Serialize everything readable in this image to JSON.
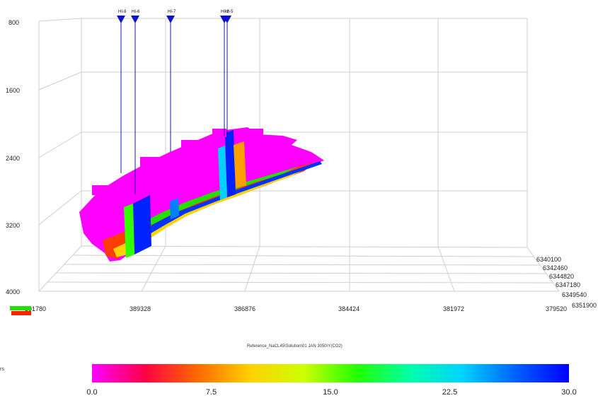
{
  "chart_data": {
    "type": "3d-grid-property",
    "caption": "Reference_NaCL45\\Solution\\01 JAN 3050\\Y(CO2)",
    "depth_axis": {
      "ticks": [
        "800",
        "1600",
        "2400",
        "3200",
        "4000"
      ],
      "range": [
        800,
        4000
      ]
    },
    "x_axis": {
      "ticks": [
        "391780",
        "389328",
        "386876",
        "384424",
        "381972",
        "379520"
      ],
      "range": [
        391780,
        379520
      ]
    },
    "y_axis": {
      "ticks": [
        "6340100",
        "6342460",
        "6344820",
        "6347180",
        "6349540",
        "6351900"
      ],
      "range": [
        6340100,
        6351900
      ]
    },
    "wells": [
      {
        "name": "HI-8"
      },
      {
        "name": "HI-6"
      },
      {
        "name": "HI-7"
      },
      {
        "name": "HI-2"
      },
      {
        "name": "HI-5"
      }
    ],
    "colorbar": {
      "ticks": [
        "0.0",
        "7.5",
        "15.0",
        "22.5",
        "30.0"
      ],
      "range": [
        0,
        30
      ],
      "colors": [
        "#ff00ff",
        "#ff0044",
        "#ff6a00",
        "#ffd200",
        "#ccff00",
        "#22ff00",
        "#00ffaa",
        "#00d2ff",
        "#0060ff",
        "#0000ff"
      ]
    },
    "left_stub_label": "rs",
    "grid": true
  }
}
